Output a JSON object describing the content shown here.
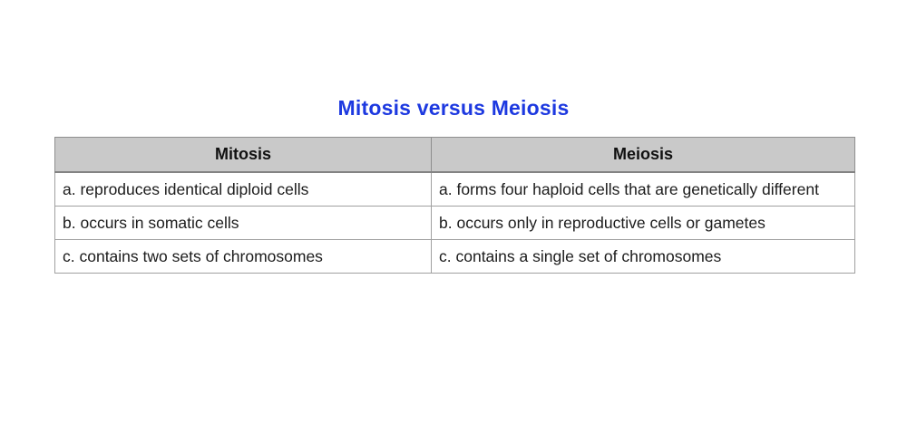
{
  "title": {
    "text": "Mitosis versus Meiosis",
    "color": "#1d39e0"
  },
  "table": {
    "header_bg": "#c9c9c9",
    "border_color": "#a0a0a0",
    "headers": [
      {
        "label": "Mitosis"
      },
      {
        "label": "Meiosis"
      }
    ],
    "rows": [
      {
        "mitosis": "a. reproduces identical diploid cells",
        "meiosis": "a. forms four haploid cells that are genetically different"
      },
      {
        "mitosis": "b. occurs in somatic cells",
        "meiosis": "b. occurs only in reproductive cells or gametes"
      },
      {
        "mitosis": "c. contains two sets of chromosomes",
        "meiosis": "c. contains a single set of chromosomes"
      }
    ]
  }
}
